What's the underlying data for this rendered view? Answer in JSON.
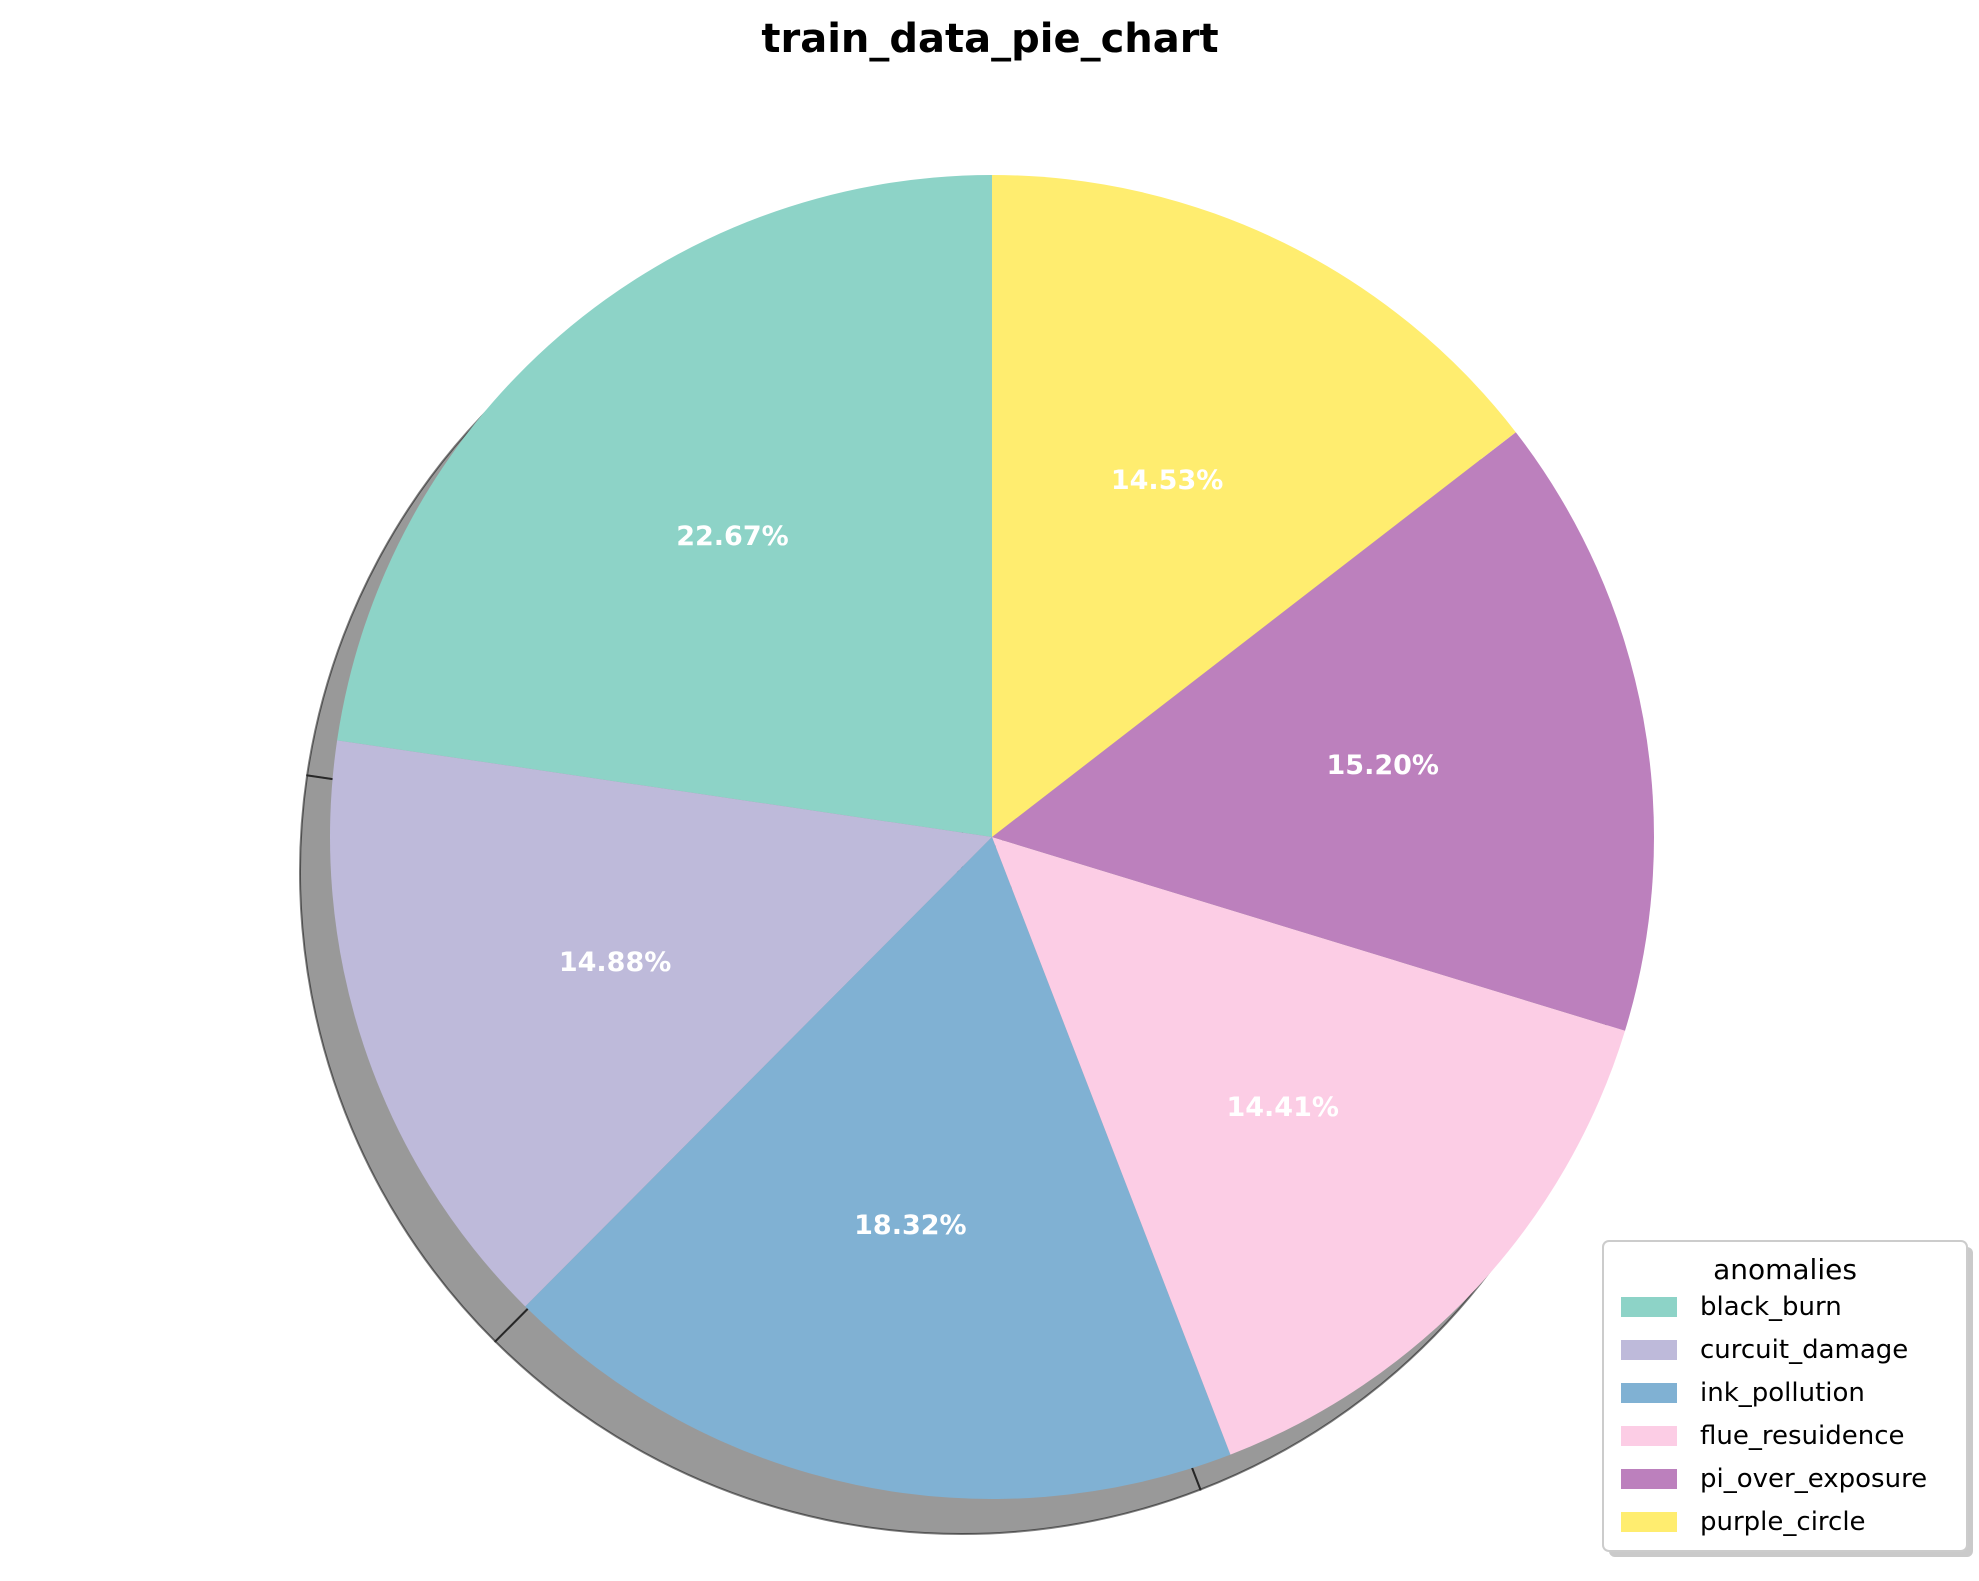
{
  "chart_data": {
    "type": "pie",
    "title": "train_data_pie_chart",
    "categories": [
      "black_burn",
      "curcuit_damage",
      "ink_pollution",
      "flue_resuidence",
      "pi_over_exposure",
      "purple_circle"
    ],
    "values": [
      22.67,
      14.88,
      18.32,
      14.41,
      15.2,
      14.53
    ],
    "labels": [
      "22.67%",
      "14.88%",
      "18.32%",
      "14.41%",
      "15.20%",
      "14.53%"
    ],
    "colors": [
      "#8dd3c7",
      "#bebada",
      "#80b1d3",
      "#fccde5",
      "#bc80bd",
      "#ffed6f"
    ],
    "start_angle_deg": 90,
    "direction": "counterclockwise",
    "shadow": true,
    "legend": {
      "title": "anomalies",
      "placement": "lower-right"
    }
  }
}
